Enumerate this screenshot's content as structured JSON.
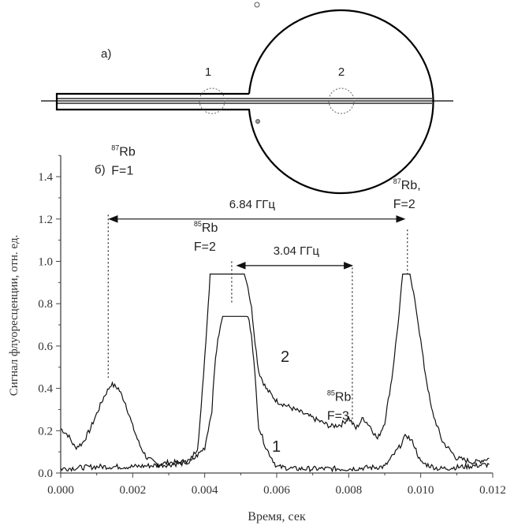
{
  "diagram": {
    "panel_label": "а)",
    "region_labels": [
      "1",
      "2"
    ]
  },
  "chart_data": {
    "type": "line",
    "panel_label": "б)",
    "xlabel": "Время, сек",
    "ylabel": "Сигнал флуоресценции, отн. ед.",
    "xlim": [
      0,
      0.012
    ],
    "ylim": [
      0,
      1.5
    ],
    "xticks": [
      "0.000",
      "0.002",
      "0.004",
      "0.006",
      "0.008",
      "0.010",
      "0.012"
    ],
    "yticks": [
      "0.0",
      "0.2",
      "0.4",
      "0.6",
      "0.8",
      "1.0",
      "1.2",
      "1.4"
    ],
    "grid": false,
    "series": [
      {
        "name": "2",
        "x": [
          0,
          0.0002,
          0.0004,
          0.0006,
          0.0008,
          0.001,
          0.0012,
          0.0014,
          0.0016,
          0.0018,
          0.002,
          0.0022,
          0.0024,
          0.0027,
          0.003,
          0.0033,
          0.0036,
          0.0038,
          0.0039,
          0.004,
          0.0041,
          0.00415,
          0.0051,
          0.0052,
          0.0053,
          0.0054,
          0.0055,
          0.0057,
          0.006,
          0.0065,
          0.007,
          0.0075,
          0.0078,
          0.008,
          0.0082,
          0.0084,
          0.0086,
          0.0088,
          0.009,
          0.0092,
          0.0094,
          0.0095,
          0.0097,
          0.0099,
          0.0101,
          0.0103,
          0.0106,
          0.011,
          0.0115,
          0.0119
        ],
        "y": [
          0.21,
          0.18,
          0.12,
          0.14,
          0.2,
          0.28,
          0.36,
          0.42,
          0.4,
          0.33,
          0.22,
          0.13,
          0.07,
          0.04,
          0.05,
          0.05,
          0.06,
          0.12,
          0.3,
          0.55,
          0.8,
          0.94,
          0.94,
          0.88,
          0.78,
          0.62,
          0.48,
          0.4,
          0.34,
          0.3,
          0.26,
          0.22,
          0.23,
          0.26,
          0.21,
          0.26,
          0.22,
          0.16,
          0.24,
          0.45,
          0.75,
          0.94,
          0.94,
          0.75,
          0.5,
          0.3,
          0.15,
          0.07,
          0.05,
          0.07
        ]
      },
      {
        "name": "1",
        "x": [
          0,
          0.001,
          0.002,
          0.003,
          0.0036,
          0.004,
          0.0042,
          0.0043,
          0.0044,
          0.0045,
          0.0052,
          0.0053,
          0.0054,
          0.0055,
          0.0057,
          0.006,
          0.0065,
          0.008,
          0.009,
          0.0094,
          0.0096,
          0.0098,
          0.01,
          0.0105,
          0.0119
        ],
        "y": [
          0.02,
          0.03,
          0.03,
          0.04,
          0.05,
          0.12,
          0.3,
          0.55,
          0.66,
          0.74,
          0.74,
          0.66,
          0.45,
          0.22,
          0.12,
          0.03,
          0.02,
          0.02,
          0.03,
          0.12,
          0.18,
          0.14,
          0.05,
          0.02,
          0.04
        ]
      }
    ],
    "annotations": {
      "peaks": [
        {
          "isotope": "87",
          "element": "Rb",
          "f_label": "F=1",
          "x": 0.00132
        },
        {
          "isotope": "85",
          "element": "Rb",
          "f_label": "F=2",
          "x": 0.00475
        },
        {
          "isotope": "85",
          "element": "Rb",
          "f_label": "F=3",
          "x": 0.0081
        },
        {
          "isotope": "87",
          "element": "Rb,",
          "f_label": "F=2",
          "x": 0.00963
        }
      ],
      "intervals": [
        {
          "label": "6.84 ГГц",
          "from": 0.00135,
          "to": 0.00955,
          "y": 1.2
        },
        {
          "label": "3.04 ГГц",
          "from": 0.0049,
          "to": 0.0081,
          "y": 0.98
        }
      ]
    }
  }
}
